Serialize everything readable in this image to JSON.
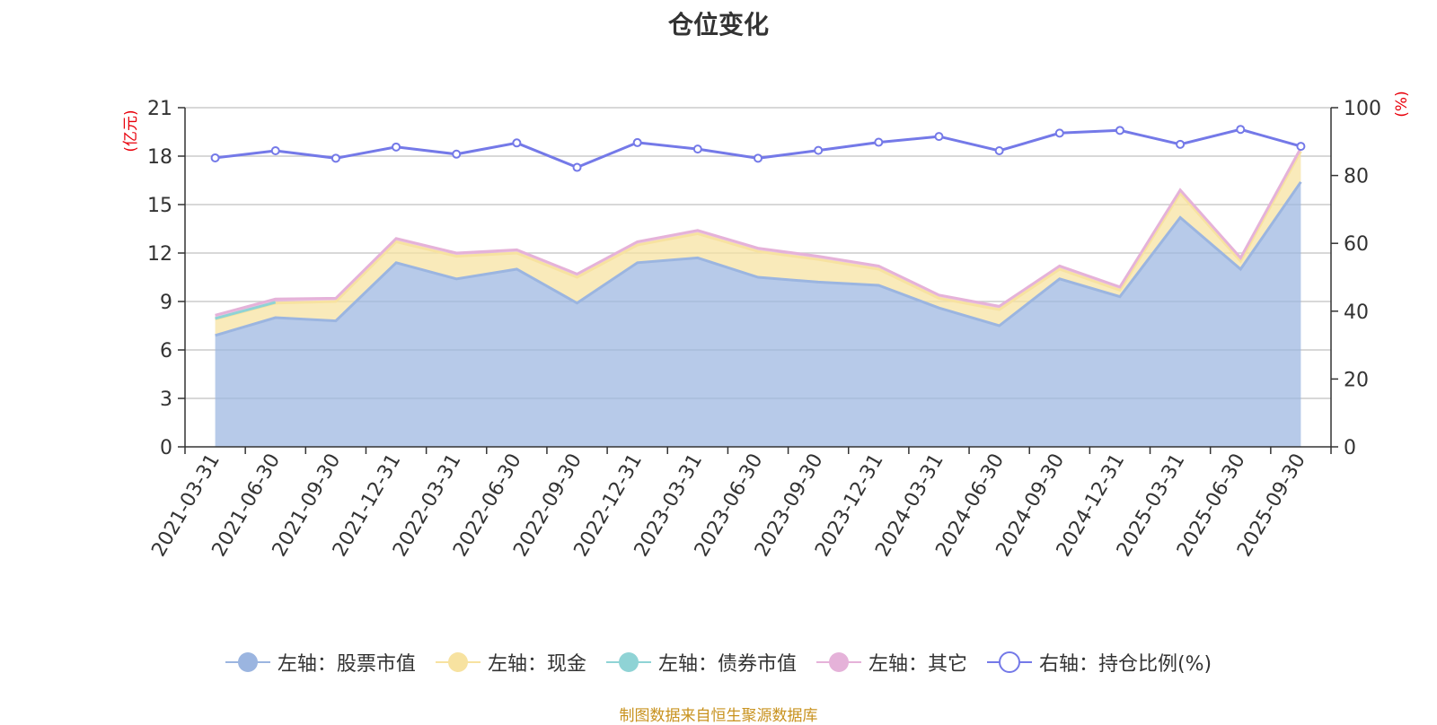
{
  "chart_data": {
    "type": "area",
    "title": "仓位变化",
    "left_axis_unit": "(亿元)",
    "right_axis_unit": "(%)",
    "left_ylim": [
      0,
      21
    ],
    "left_ticks": [
      0,
      3,
      6,
      9,
      12,
      15,
      18,
      21
    ],
    "right_ylim": [
      0,
      100
    ],
    "right_ticks": [
      0,
      20,
      40,
      60,
      80,
      100
    ],
    "categories": [
      "2021-03-31",
      "2021-06-30",
      "2021-09-30",
      "2021-12-31",
      "2022-03-31",
      "2022-06-30",
      "2022-09-30",
      "2022-12-31",
      "2023-03-31",
      "2023-06-30",
      "2023-09-30",
      "2023-12-31",
      "2024-03-31",
      "2024-06-30",
      "2024-09-30",
      "2024-12-31",
      "2025-03-31",
      "2025-06-30",
      "2025-09-30"
    ],
    "series": [
      {
        "name": "左轴：股票市值",
        "axis": "left",
        "kind": "stack-area",
        "color": "#9bb5e0",
        "values": [
          6.9,
          8.0,
          7.8,
          11.4,
          10.4,
          11.0,
          8.9,
          11.4,
          11.7,
          10.5,
          10.2,
          10.0,
          8.6,
          7.5,
          10.4,
          9.3,
          14.2,
          11.0,
          16.4
        ]
      },
      {
        "name": "左轴：现金",
        "axis": "left",
        "kind": "stack-area",
        "color": "#f7e2a0",
        "values": [
          1.0,
          0.9,
          1.2,
          1.3,
          1.4,
          1.0,
          1.6,
          1.1,
          1.5,
          1.6,
          1.4,
          1.0,
          0.6,
          1.0,
          0.6,
          0.4,
          1.5,
          0.5,
          1.9
        ]
      },
      {
        "name": "左轴：债券市值",
        "axis": "left",
        "kind": "stack-area",
        "color": "#8fd3d5",
        "values": [
          0.05,
          0.05,
          null,
          null,
          null,
          null,
          null,
          null,
          null,
          null,
          null,
          null,
          null,
          null,
          null,
          null,
          null,
          null,
          null
        ]
      },
      {
        "name": "左轴：其它",
        "axis": "left",
        "kind": "stack-area",
        "color": "#e5b2d9",
        "values": [
          0.2,
          0.2,
          0.2,
          0.2,
          0.2,
          0.2,
          0.2,
          0.2,
          0.2,
          0.2,
          0.2,
          0.2,
          0.2,
          0.2,
          0.2,
          0.2,
          0.2,
          0.2,
          0.2
        ]
      },
      {
        "name": "右轴：持仓比例(%)",
        "axis": "right",
        "kind": "line",
        "color": "#7479e8",
        "values": [
          85.2,
          87.3,
          85.1,
          88.4,
          86.3,
          89.6,
          82.4,
          89.7,
          87.8,
          85.1,
          87.4,
          89.8,
          91.5,
          87.3,
          92.5,
          93.3,
          89.2,
          93.6,
          88.6
        ]
      }
    ],
    "legend_position": "bottom-center",
    "grid": true
  },
  "source_note": "制图数据来自恒生聚源数据库"
}
